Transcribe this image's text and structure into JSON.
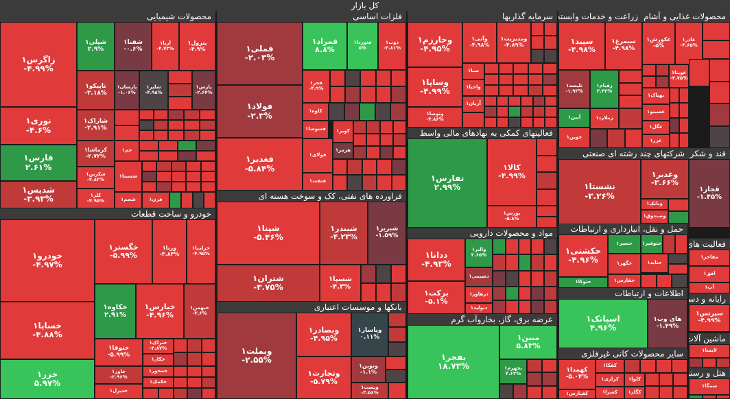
{
  "title": "کل بازار",
  "colors": {
    "r3": "#e03a3a",
    "r2": "#c03a3a",
    "r1": "#a03a3e",
    "dk": "#7a3a44",
    "gy": "#4e4446",
    "ng": "#364549",
    "g1": "#2e9a48",
    "g2": "#38c45a"
  },
  "sectors": [
    {
      "name": "محصولات شیمیایی",
      "tiles": [
        {
          "symbol": "زاگرس۱",
          "change": "-۴.۹۹%",
          "c": "r3"
        },
        {
          "symbol": "شپلی۱",
          "change": "۲.۹%",
          "c": "g1"
        },
        {
          "symbol": "شفنا۱",
          "change": "-۰.۶%",
          "c": "dk"
        },
        {
          "symbol": "آریا۱",
          "change": "-۴.۷۳%",
          "c": "r3"
        },
        {
          "symbol": "پترول۱",
          "change": "-۴.۹%",
          "c": "r3"
        },
        {
          "symbol": "نوری۱",
          "change": "-۴.۶%",
          "c": "r3"
        },
        {
          "symbol": "تاپیکو۱",
          "change": "-۳.۱۸%",
          "c": "r2"
        },
        {
          "symbol": "پارسان۱",
          "change": "-۱.۰۶%",
          "c": "dk"
        },
        {
          "symbol": "شلیر۱",
          "change": "-۴.۹۸%",
          "c": "gy"
        },
        {
          "symbol": "پارس۱",
          "change": "-۲.۶۴%",
          "c": "dk"
        },
        {
          "symbol": "شاراک۱",
          "change": "-۲.۹۱%",
          "c": "r2"
        },
        {
          "symbol": "فارس۱",
          "change": "۲.۶۱%",
          "c": "g1"
        },
        {
          "symbol": "کرماشا۱",
          "change": "-۲.۷۲%",
          "c": "r2"
        },
        {
          "symbol": "جم۱",
          "change": "",
          "c": "r3"
        },
        {
          "symbol": "شکربن۱",
          "change": "-۴.۸۲%",
          "c": "r3"
        },
        {
          "symbol": "شسینا۱",
          "change": "",
          "c": "r3"
        },
        {
          "symbol": "شدیس۱",
          "change": "-۳.۹۳%",
          "c": "r2"
        },
        {
          "symbol": "شجم۱",
          "change": "",
          "c": "r3"
        },
        {
          "symbol": "کلر۱",
          "change": "-۴.۹۵%",
          "c": "r3"
        },
        {
          "symbol": "قرن۱",
          "change": "",
          "c": "r3"
        }
      ]
    },
    {
      "name": "فلزات اساسی",
      "tiles": [
        {
          "symbol": "فملی۱",
          "change": "-۲.۰۳%",
          "c": "r1"
        },
        {
          "symbol": "فمراد۱",
          "change": "۸.۸%",
          "c": "g2"
        },
        {
          "symbol": "فتوردا۱",
          "change": "۵%",
          "c": "g2"
        },
        {
          "symbol": "ذوب۱",
          "change": "-۴.۸۱%",
          "c": "r3"
        },
        {
          "symbol": "فولاد۱",
          "change": "-۲.۳%",
          "c": "r1"
        },
        {
          "symbol": "فجر۱",
          "change": "-۴.۹%",
          "c": "r3"
        },
        {
          "symbol": "کاوه۱",
          "change": "",
          "c": "r3"
        },
        {
          "symbol": "فسوسا۱",
          "change": "",
          "c": "r3"
        },
        {
          "symbol": "کویر۱",
          "change": "",
          "c": "r3"
        },
        {
          "symbol": "هرمز۱",
          "change": "",
          "c": "dk"
        },
        {
          "symbol": "فغدیر۱",
          "change": "-۵.۸۴%",
          "c": "r3"
        },
        {
          "symbol": "فولای۱",
          "change": "",
          "c": "r3"
        },
        {
          "symbol": "فنفت۱",
          "change": "",
          "c": "r3"
        }
      ]
    },
    {
      "name": "سرمایه گذاریها",
      "tiles": [
        {
          "symbol": "وخارزم۱",
          "change": "-۴.۹۵%",
          "c": "r3"
        },
        {
          "symbol": "وآتی۱",
          "change": "-۴.۹۸%",
          "c": "r3"
        },
        {
          "symbol": "ومدیریت۱",
          "change": "-۴.۸۹%",
          "c": "r3"
        },
        {
          "symbol": "وساپا۱",
          "change": "-۴.۹۹%",
          "c": "r3"
        },
        {
          "symbol": "صبا۱",
          "change": "",
          "c": "r3"
        },
        {
          "symbol": "واحیا۱",
          "change": "",
          "c": "r3"
        },
        {
          "symbol": "وتوصا۱",
          "change": "-۴.۸۶%",
          "c": "r3"
        },
        {
          "symbol": "آریان۱",
          "change": "",
          "c": "r3"
        }
      ]
    },
    {
      "name": "زراعت و خدمات وابسته",
      "tiles": [
        {
          "symbol": "سپید۱",
          "change": "-۴.۹۸%",
          "c": "r3"
        },
        {
          "symbol": "سیمرغ۱",
          "change": "-۴.۹۸%",
          "c": "r3"
        },
        {
          "symbol": "تلیسه۱",
          "change": "-۱.۹۳%",
          "c": "r1"
        },
        {
          "symbol": "زقیام۱",
          "change": "۳.۴۲%",
          "c": "g1"
        },
        {
          "symbol": "آبین۱",
          "change": "",
          "c": "g1"
        },
        {
          "symbol": "زملارد۱",
          "change": "",
          "c": "r3"
        },
        {
          "symbol": "جوین۱",
          "change": "",
          "c": "r3"
        }
      ]
    },
    {
      "name": "محصولات غذایی و آشام",
      "tiles": [
        {
          "symbol": "عکورش۱",
          "change": "-۵%",
          "c": "r3"
        },
        {
          "symbol": "غاذر۱",
          "change": "-۴.۶۵%",
          "c": "r3"
        },
        {
          "symbol": "غویتا۱",
          "change": "-۴.۷۵%",
          "c": "r3"
        },
        {
          "symbol": "بهپاک۱",
          "change": "",
          "c": "r3"
        },
        {
          "symbol": "غسینو۱",
          "change": "",
          "c": "r3"
        },
        {
          "symbol": "غگل۱",
          "change": "",
          "c": "r3"
        },
        {
          "symbol": "غزر۱",
          "change": "",
          "c": "r3"
        }
      ]
    },
    {
      "name": "قند و شکر",
      "tiles": [
        {
          "symbol": "قجار۱",
          "change": "-۱.۴۵%",
          "c": "dk"
        }
      ]
    },
    {
      "name": "فعالیت های",
      "tiles": [
        {
          "symbol": "مفاخر۱",
          "change": "",
          "c": "r3"
        },
        {
          "symbol": "افق۱",
          "change": "",
          "c": "r3"
        },
        {
          "symbol": "آپ۱",
          "change": "",
          "c": "r3"
        }
      ]
    },
    {
      "name": "رایانه و دستگ",
      "tiles": [
        {
          "symbol": "سپرتس۱",
          "change": "-۴.۹۹%",
          "c": "r3"
        }
      ]
    },
    {
      "name": "ماشین آلات و تجهی",
      "tiles": [
        {
          "symbol": "لابسا۱",
          "change": "",
          "c": "r3"
        }
      ]
    },
    {
      "name": "هتل و رستوران",
      "tiles": [
        {
          "symbol": "سمگا۱",
          "change": "",
          "c": "r3"
        }
      ]
    },
    {
      "name": "فعالیتهای کمکی به نهادهای مالی واسط",
      "tiles": [
        {
          "symbol": "تفارس۱",
          "change": "۲.۹۹%",
          "c": "g1"
        },
        {
          "symbol": "کالا۱",
          "change": "-۴.۹۹%",
          "c": "r3"
        },
        {
          "symbol": "بورس۱",
          "change": "-۵.۸%",
          "c": "r3"
        }
      ]
    },
    {
      "name": "شرکتهای چند رشته ای صنعتی",
      "tiles": [
        {
          "symbol": "نشستا۱",
          "change": "-۳.۲۶%",
          "c": "r2"
        },
        {
          "symbol": "وغدیر۱",
          "change": "-۳.۶۶%",
          "c": "r2"
        },
        {
          "symbol": "وبانک۱",
          "change": "",
          "c": "r3"
        },
        {
          "symbol": "وصندوق۱",
          "change": "",
          "c": "r3"
        }
      ]
    },
    {
      "name": "حمل و نقل، انبارداری و ارتباطات",
      "tiles": [
        {
          "symbol": "حکشتی۱",
          "change": "-۴.۹۶%",
          "c": "r3"
        },
        {
          "symbol": "حسیر۱",
          "change": "",
          "c": "g1"
        },
        {
          "symbol": "حتوقیر۱",
          "change": "",
          "c": "g1"
        },
        {
          "symbol": "حگهر۱",
          "change": "",
          "c": "r3"
        },
        {
          "symbol": "حتاید۱",
          "change": "",
          "c": "r3"
        },
        {
          "symbol": "حتوکا۱",
          "change": "",
          "c": "g1"
        },
        {
          "symbol": "حفارس۱",
          "change": "",
          "c": "r3"
        }
      ]
    },
    {
      "name": "اطلاعات و ارتباطات",
      "tiles": [
        {
          "symbol": "اسپاتک۱",
          "change": "۴.۹۶%",
          "c": "g2"
        },
        {
          "symbol": "های وب۱",
          "change": "-۱.۴۹%",
          "c": "dk"
        }
      ]
    },
    {
      "name": "سایر محصولات کانی غیرفلزی",
      "tiles": [
        {
          "symbol": "کهمدا۱",
          "change": "-۵.۰۴%",
          "c": "r3"
        },
        {
          "symbol": "کفکا۱",
          "change": "",
          "c": "r3"
        },
        {
          "symbol": "کرازی۱",
          "change": "",
          "c": "r3"
        },
        {
          "symbol": "کسرا۱",
          "change": "",
          "c": "r3"
        },
        {
          "symbol": "کلوا۱",
          "change": "",
          "c": "r3"
        },
        {
          "symbol": "کگاز۱",
          "change": "",
          "c": "r3"
        },
        {
          "symbol": "کفپارس۱",
          "change": "",
          "c": "r3"
        }
      ]
    },
    {
      "name": "فراورده های نفتی، کک و سوخت هسته ای",
      "tiles": [
        {
          "symbol": "شپنا۱",
          "change": "-۵.۴۶%",
          "c": "r3"
        },
        {
          "symbol": "شبندر۱",
          "change": "-۴.۲۳%",
          "c": "r2"
        },
        {
          "symbol": "شبریز۱",
          "change": "-۱.۵۹%",
          "c": "dk"
        },
        {
          "symbol": "شتران۱",
          "change": "-۳.۷۵%",
          "c": "r2"
        },
        {
          "symbol": "شسپا۱",
          "change": "-۴.۳%",
          "c": "r3"
        }
      ]
    },
    {
      "name": "مواد و محصولات دارویی",
      "tiles": [
        {
          "symbol": "ددانا۱",
          "change": "-۴.۹۳%",
          "c": "r3"
        },
        {
          "symbol": "والبر۱",
          "change": "۳.۶۵%",
          "c": "g1"
        },
        {
          "symbol": "دشیمی۱",
          "change": "",
          "c": "r1"
        },
        {
          "symbol": "برکت۱",
          "change": "-۵.۱%",
          "c": "r3"
        },
        {
          "symbol": "درهاور۱",
          "change": "",
          "c": "r3"
        },
        {
          "symbol": "دتولید۱",
          "change": "",
          "c": "r3"
        }
      ]
    },
    {
      "name": "عرضه برق، گاز، بخاروآب گرم",
      "tiles": [
        {
          "symbol": "بفجر۱",
          "change": "۱۸.۷۳%",
          "c": "g2"
        },
        {
          "symbol": "مبین۱",
          "change": "۵.۸۳%",
          "c": "g2"
        },
        {
          "symbol": "بجهرم۱",
          "change": "۴.۶۳%",
          "c": "g1"
        }
      ]
    },
    {
      "name": "خودرو و ساخت قطعات",
      "tiles": [
        {
          "symbol": "خودرو۱",
          "change": "-۴.۹۷%",
          "c": "r3"
        },
        {
          "symbol": "خگستر۱",
          "change": "-۵.۹۹%",
          "c": "r3"
        },
        {
          "symbol": "ورنا۱",
          "change": "-۴.۸۳%",
          "c": "r3"
        },
        {
          "symbol": "خزامیا۱",
          "change": "-۴.۹۵%",
          "c": "r3"
        },
        {
          "symbol": "خکاوه۱",
          "change": "۲.۹۱%",
          "c": "g1"
        },
        {
          "symbol": "خبارس۱",
          "change": "-۴.۹۶%",
          "c": "r3"
        },
        {
          "symbol": "خبهمن۱",
          "change": "-۳.۶%",
          "c": "r2"
        },
        {
          "symbol": "خساپا۱",
          "change": "-۴.۸۸%",
          "c": "r3"
        },
        {
          "symbol": "ختوقا۱",
          "change": "-۵.۹۹%",
          "c": "r3"
        },
        {
          "symbol": "ختراک۱",
          "change": "-۴.۸۷%",
          "c": "r3"
        },
        {
          "symbol": "خکار۱",
          "change": "",
          "c": "r3"
        },
        {
          "symbol": "خاور۱",
          "change": "-۲.۹۶%",
          "c": "r2"
        },
        {
          "symbol": "خمحور۱",
          "change": "",
          "c": "r3"
        },
        {
          "symbol": "خکمک۱",
          "change": "",
          "c": "r3"
        },
        {
          "symbol": "خزر۱",
          "change": "۵.۹۷%",
          "c": "g2"
        },
        {
          "symbol": "خدیزل۱",
          "change": "",
          "c": "r3"
        }
      ]
    },
    {
      "name": "بانکها و موسسات اعتباری",
      "tiles": [
        {
          "symbol": "وبملت۱",
          "change": "-۲.۵۵%",
          "c": "r1"
        },
        {
          "symbol": "وبصادر۱",
          "change": "-۴.۹۵%",
          "c": "r3"
        },
        {
          "symbol": "وپاسار۱",
          "change": "۰.۱۱%",
          "c": "ng"
        },
        {
          "symbol": "ونوین۱",
          "change": "-۱.۱%",
          "c": "r1"
        },
        {
          "symbol": "وتجارت۱",
          "change": "-۵.۷۹%",
          "c": "r3"
        },
        {
          "symbol": "وپست۱",
          "change": "-۳.۵۶%",
          "c": "r2"
        }
      ]
    }
  ]
}
